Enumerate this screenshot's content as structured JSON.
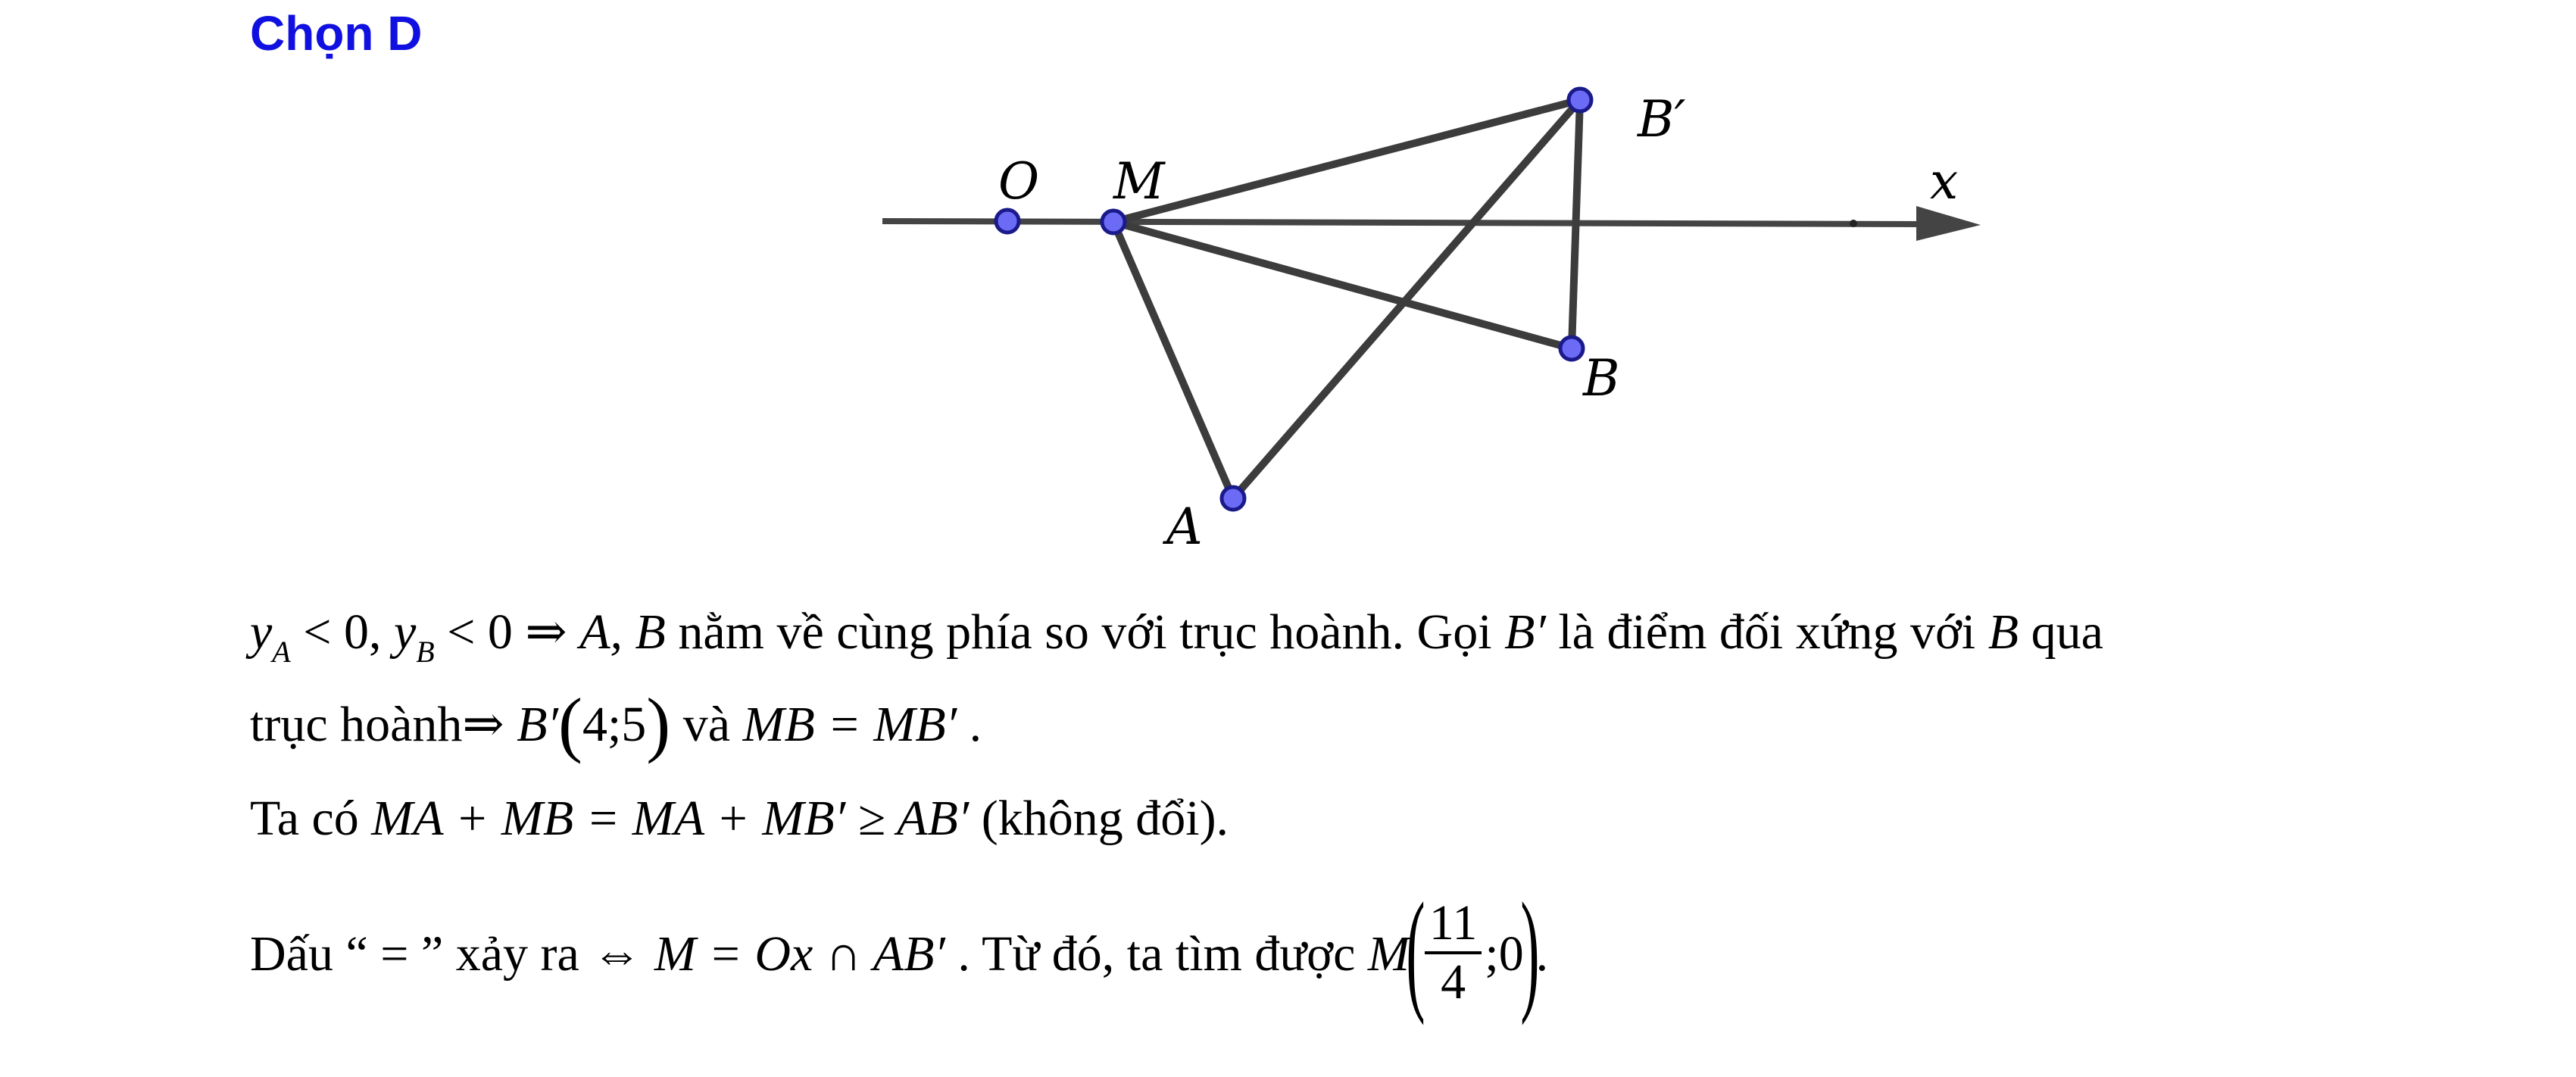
{
  "answer_label": "Chọn D",
  "figure": {
    "points": [
      {
        "id": "O",
        "label": "O"
      },
      {
        "id": "M",
        "label": "M"
      },
      {
        "id": "Bp",
        "label": "B′"
      },
      {
        "id": "B",
        "label": "B"
      },
      {
        "id": "A",
        "label": "A"
      }
    ],
    "axis_label": "x",
    "colors": {
      "point_fill": "#6b6bf5",
      "point_stroke": "#1a1a8a",
      "segment": "#3c3c3c",
      "axis": "#444444"
    }
  },
  "solution": {
    "l1_ya": "y",
    "l1_ya_sub": "A",
    "l1_lt0a": " < 0, ",
    "l1_yb": "y",
    "l1_yb_sub": "B",
    "l1_lt0b": " < 0 ⇒ ",
    "l1_ab": "A, B",
    "l1_t1": " nằm về cùng phía so với trục hoành. Gọi ",
    "l1_bp": "B′",
    "l1_t2": " là điểm đối xứng với ",
    "l1_b": "B",
    "l1_t3": " qua",
    "l2_t1": "trục hoành",
    "l2_imp": "⇒ ",
    "l2_bp": "B′",
    "l2_lp": "(",
    "l2_coords": "4;5",
    "l2_rp": ")",
    "l2_t2": " và ",
    "l2_eq": "MB = MB′",
    "l2_end": " .",
    "l3_t1": "Ta có ",
    "l3_expr": "MA + MB = MA + MB′ ≥ AB′",
    "l3_t2": " (không đổi).",
    "l4_t1": "Dấu “ = ” xảy ra ",
    "l4_iff": "⇔ ",
    "l4_expr": "M = Ox ∩ AB′",
    "l4_t2": " . Từ đó, ta tìm được ",
    "l4_m": "M",
    "l4_lp": "(",
    "l4_num": "11",
    "l4_den": "4",
    "l4_rest": ";0",
    "l4_rp": ")",
    "l4_end": "."
  }
}
